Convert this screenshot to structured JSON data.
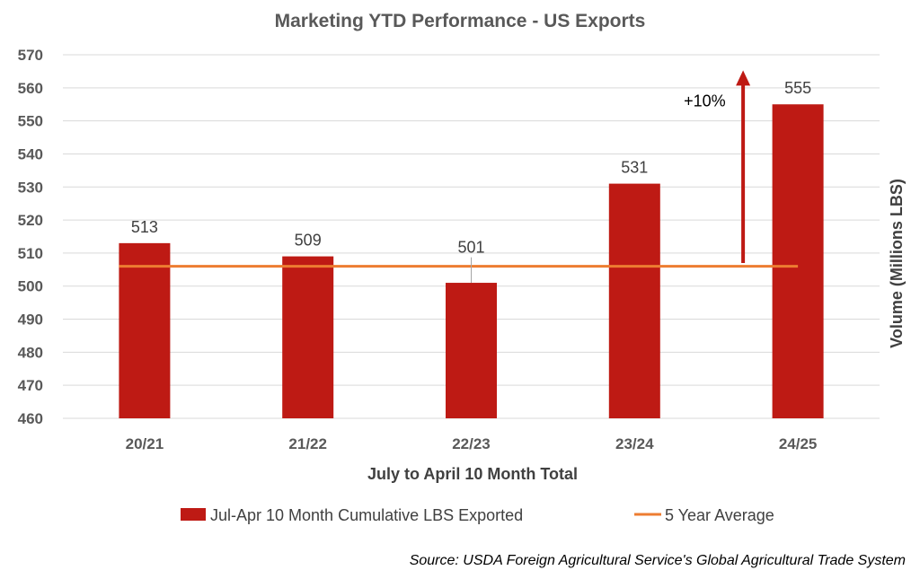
{
  "chart_data": {
    "type": "bar",
    "title": "Marketing YTD Performance - US Exports",
    "categories": [
      "20/21",
      "21/22",
      "22/23",
      "23/24",
      "24/25"
    ],
    "series": [
      {
        "name": "Jul-Apr 10 Month Cumulative LBS Exported",
        "type": "bar",
        "color": "#be1a14",
        "values": [
          513,
          509,
          501,
          531,
          555
        ],
        "data_labels": [
          "513",
          "509",
          "501",
          "531",
          "555"
        ]
      },
      {
        "name": "5 Year Average",
        "type": "line",
        "color": "#ed7d31",
        "values": [
          506,
          506,
          506,
          506,
          506
        ]
      }
    ],
    "xlabel": "July to April 10 Month Total",
    "ylabel": "Volume (Millions LBS)",
    "ylim": [
      460,
      570
    ],
    "yticks": [
      460,
      470,
      480,
      490,
      500,
      510,
      520,
      530,
      540,
      550,
      560,
      570
    ],
    "grid": true,
    "legend_position": "bottom",
    "annotation": {
      "text": "+10%",
      "arrow_color": "#be1a14",
      "arrow_from": 507,
      "arrow_to": 565,
      "arrow_category": "24/25"
    }
  },
  "source": "Source: USDA Foreign Agricultural Service's Global Agricultural Trade System"
}
